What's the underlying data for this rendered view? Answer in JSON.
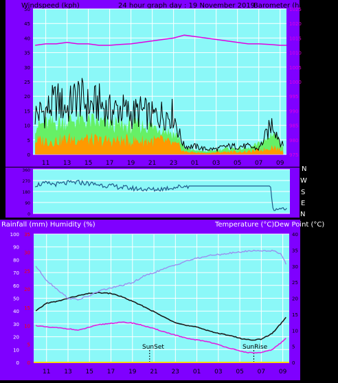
{
  "colors": {
    "panel": "#7f00ff",
    "plot": "#8bf8f8",
    "grid": "#ffffff",
    "label": "#000000",
    "baro_label": "#e000e0",
    "rain_label": "#ff0000",
    "windspeed": "#000000",
    "gust_fill": "#66f066",
    "avg_fill": "#ff9900",
    "barometer": "#e000e0",
    "direction": "#1f5a8a",
    "temperature": "#1a1a1a",
    "dewpoint": "#e020e0",
    "humidity": "#9a8fef",
    "rain": "#ffd700"
  },
  "header": {
    "left": "Windspeed (kph)",
    "center": "24 hour graph day : 19 November 2019",
    "right": "Barometer (hpa)"
  },
  "lower_header": {
    "left": "Rainfall (mm)  Humidity (%)",
    "right": "Temperature (°C)Dew Point (°C)"
  },
  "direction_labels": [
    "N",
    "W",
    "S",
    "E",
    "N"
  ],
  "x_ticks": [
    "11",
    "13",
    "15",
    "17",
    "19",
    "21",
    "23",
    "01",
    "03",
    "05",
    "07",
    "09"
  ],
  "annotations": [
    {
      "label": "SunSet",
      "hour": 20.6
    },
    {
      "label": "SunRise",
      "hour": 30.3
    }
  ],
  "chart_data": [
    {
      "type": "line",
      "panel": "wind",
      "x_unit": "hour of day (24h clock, values >24 are next day)",
      "xlim": [
        9.8,
        33.6
      ],
      "x_ticks": [
        "11",
        "13",
        "15",
        "17",
        "19",
        "21",
        "23",
        "01",
        "03",
        "05",
        "07",
        "09"
      ],
      "ylabel": "Windspeed (kph)",
      "ylim": [
        0,
        50
      ],
      "y_ticks": [
        0,
        5,
        10,
        15,
        20,
        25,
        30,
        35,
        40,
        45,
        50
      ],
      "y2label": "Barometer (hpa)",
      "y2lim": [
        975,
        1025
      ],
      "y2_ticks": [
        975,
        980,
        985,
        990,
        995,
        1000,
        1005,
        1010,
        1015,
        1020,
        1025
      ],
      "series": [
        {
          "axis": "y",
          "x": [
            10.0,
            11.0,
            12.0,
            13.0,
            14.0,
            15.0,
            16.0,
            17.0,
            18.0,
            19.0,
            20.0,
            21.0,
            22.0,
            23.0,
            23.5,
            24.0,
            25.0,
            26.0,
            27.0,
            28.0,
            29.0,
            30.0,
            31.0,
            31.8,
            32.3,
            32.7,
            33.0,
            33.3
          ],
          "values": [
            15,
            16,
            20,
            17,
            22,
            18,
            19,
            16,
            17,
            15,
            16,
            14,
            15,
            15,
            8,
            3,
            3,
            2,
            2,
            3,
            3,
            3,
            2,
            8,
            12,
            8,
            5,
            3
          ]
        },
        {
          "axis": "y",
          "x": [
            10.0,
            12.0,
            14.0,
            16.0,
            18.0,
            20.0,
            22.0,
            23.5,
            24.0,
            26.0,
            28.0,
            30.0,
            31.8,
            32.3,
            33.3
          ],
          "values": [
            10,
            11,
            12,
            11,
            10,
            10,
            9,
            6,
            2,
            1,
            2,
            2,
            5,
            8,
            3
          ]
        },
        {
          "axis": "y",
          "x": [
            10.0,
            12.0,
            14.0,
            16.0,
            18.0,
            20.0,
            22.0,
            23.5,
            24.0,
            26.0,
            28.0,
            30.0,
            31.8,
            32.3,
            33.3
          ],
          "values": [
            5,
            5,
            6,
            5,
            5,
            5,
            5,
            3,
            1,
            0.5,
            1,
            1,
            2,
            3,
            1
          ]
        },
        {
          "axis": "y2",
          "x": [
            10.0,
            11.0,
            12.0,
            13.0,
            14.0,
            15.0,
            16.0,
            17.0,
            18.0,
            19.0,
            20.0,
            21.0,
            22.0,
            23.0,
            24.0,
            25.0,
            26.0,
            27.0,
            28.0,
            29.0,
            30.0,
            31.0,
            32.0,
            33.0,
            33.6
          ],
          "values": [
            1012.5,
            1013,
            1013,
            1013.5,
            1013,
            1013,
            1012.5,
            1012.5,
            1012.8,
            1013,
            1013.5,
            1014,
            1014.5,
            1015,
            1016,
            1015.5,
            1015,
            1014.5,
            1014,
            1013.5,
            1013,
            1013,
            1012.8,
            1012.5,
            1012.5
          ]
        }
      ]
    },
    {
      "type": "line",
      "panel": "direction",
      "xlim": [
        9.8,
        33.6
      ],
      "ylim": [
        0,
        360
      ],
      "y_ticks": [
        0,
        90,
        180,
        270,
        360
      ],
      "series": [
        {
          "x": [
            10.0,
            11.0,
            12.0,
            13.0,
            14.0,
            15.0,
            16.0,
            17.0,
            18.0,
            19.0,
            20.0,
            21.0,
            22.0,
            23.0,
            24.0,
            25.0,
            26.0,
            27.0,
            28.0,
            29.0,
            30.0,
            31.0,
            31.8,
            32.0,
            32.2,
            32.6,
            33.0,
            33.3
          ],
          "values": [
            235,
            245,
            240,
            250,
            255,
            245,
            235,
            225,
            215,
            205,
            200,
            195,
            205,
            215,
            225,
            225,
            225,
            225,
            225,
            225,
            225,
            225,
            225,
            50,
            30,
            40,
            45,
            40
          ]
        }
      ]
    },
    {
      "type": "line",
      "panel": "temperature",
      "xlim": [
        9.8,
        33.6
      ],
      "x_ticks": [
        "11",
        "13",
        "15",
        "17",
        "19",
        "21",
        "23",
        "01",
        "03",
        "05",
        "07",
        "09"
      ],
      "ylabel": "Rainfall (mm)  Humidity (%)",
      "ylim": [
        0,
        100
      ],
      "y_ticks": [
        0,
        10,
        20,
        30,
        40,
        50,
        60,
        70,
        80,
        90,
        100
      ],
      "rain_ticks": [
        0,
        5,
        10,
        15,
        20,
        25,
        30,
        35
      ],
      "y2label": "Temperature (°C)Dew Point (°C)",
      "y2lim": [
        0,
        40
      ],
      "y2_ticks": [
        0,
        5,
        10,
        15,
        20,
        25,
        30,
        35,
        40
      ],
      "series": [
        {
          "axis": "y2",
          "x": [
            10.0,
            11.0,
            12.0,
            13.0,
            14.0,
            15.0,
            16.0,
            17.0,
            18.0,
            19.0,
            20.0,
            21.0,
            22.0,
            23.0,
            24.0,
            25.0,
            26.0,
            27.0,
            28.0,
            29.0,
            30.0,
            31.0,
            32.0,
            32.8,
            33.3
          ],
          "values": [
            16,
            18.5,
            19,
            20,
            20.8,
            21.5,
            21.7,
            21.5,
            20.5,
            19,
            17.5,
            15.8,
            14,
            12.5,
            11.5,
            11,
            10,
            9,
            8.5,
            7.5,
            7,
            7.2,
            9,
            12,
            14
          ]
        },
        {
          "axis": "y2",
          "x": [
            10.0,
            11.0,
            12.0,
            13.0,
            14.0,
            15.0,
            16.0,
            17.0,
            18.0,
            19.0,
            20.0,
            21.0,
            22.0,
            23.0,
            24.0,
            25.0,
            26.0,
            27.0,
            28.0,
            29.0,
            30.0,
            31.0,
            32.0,
            32.8,
            33.3
          ],
          "values": [
            11.5,
            11,
            10.8,
            10.5,
            10,
            11,
            11.8,
            12.2,
            12.5,
            12.3,
            11.5,
            10.5,
            9.5,
            8.5,
            7.5,
            7,
            6.5,
            5.5,
            4.5,
            3.5,
            3,
            3,
            4,
            6,
            7.5
          ]
        },
        {
          "axis": "y",
          "x": [
            10.0,
            11.0,
            12.0,
            13.0,
            14.0,
            15.0,
            16.0,
            17.0,
            18.0,
            19.0,
            20.0,
            21.0,
            22.0,
            23.0,
            24.0,
            25.0,
            26.0,
            27.0,
            28.0,
            29.0,
            30.0,
            31.0,
            32.0,
            32.8,
            33.3
          ],
          "values": [
            75,
            64,
            57,
            50,
            49,
            52,
            56,
            58,
            60,
            62,
            67,
            70,
            73,
            76,
            79,
            81,
            83,
            84,
            85,
            86,
            87,
            87,
            87,
            85,
            77
          ]
        },
        {
          "axis": "rain",
          "x": [
            9.8,
            33.6
          ],
          "values": [
            0,
            0
          ]
        }
      ]
    }
  ]
}
